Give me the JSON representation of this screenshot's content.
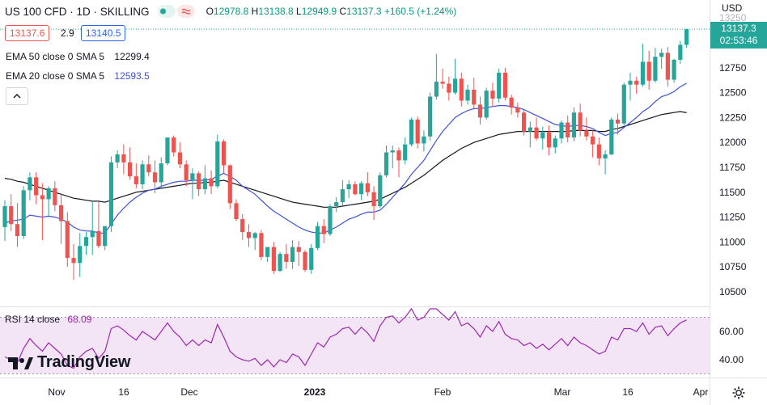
{
  "header": {
    "symbol": "US 100 CFD · 1D · SKILLING",
    "ohlc": {
      "o_label": "O",
      "o": "12978.8",
      "h_label": "H",
      "h": "13138.8",
      "l_label": "L",
      "l": "12949.9",
      "c_label": "C",
      "c": "13137.3",
      "change": "+160.5 (+1.24%)"
    },
    "sell": "13137.6",
    "spread": "2.9",
    "buy": "13140.5"
  },
  "indicators": {
    "ema50_label": "EMA 50 close 0 SMA 5",
    "ema50_value": "12299.4",
    "ema20_label": "EMA 20 close 0 SMA 5",
    "ema20_value": "12593.5",
    "rsi_label": "RSI 14 close",
    "rsi_value": "68.09"
  },
  "price_axis": {
    "unit": "USD",
    "last_price": "13137.3",
    "countdown": "02:53:46"
  },
  "brand": "TradingView",
  "colors": {
    "up": "#26a69a",
    "down": "#ef5350",
    "ema20": "#3f51d8",
    "ema50": "#131722",
    "rsi_line": "#9c27b0",
    "rsi_band": "#f3e5f5",
    "sell_border": "#ef5350",
    "buy_border": "#2962ff"
  },
  "chart_data": [
    {
      "type": "candlestick",
      "series_name": "US 100 CFD",
      "x_labels": [
        "Nov",
        "16",
        "Dec",
        "2023",
        "Feb",
        "Mar",
        "16",
        "Apr"
      ],
      "y_ticks": [
        10500,
        10750,
        11000,
        11250,
        11500,
        11750,
        12000,
        12250,
        12500,
        12750,
        13000,
        13250
      ],
      "ylim": [
        10400,
        13300
      ],
      "ohlc": [
        [
          11150,
          11420,
          11010,
          11360
        ],
        [
          11360,
          11480,
          11110,
          11180
        ],
        [
          11180,
          11390,
          10950,
          11060
        ],
        [
          11060,
          11560,
          11030,
          11520
        ],
        [
          11520,
          11700,
          11420,
          11650
        ],
        [
          11650,
          11700,
          11380,
          11470
        ],
        [
          11470,
          11590,
          11020,
          11430
        ],
        [
          11430,
          11560,
          11260,
          11540
        ],
        [
          11540,
          11610,
          11310,
          11370
        ],
        [
          11370,
          11490,
          10980,
          11210
        ],
        [
          11210,
          11300,
          10750,
          10840
        ],
        [
          10840,
          10980,
          10620,
          10790
        ],
        [
          10790,
          11090,
          10650,
          10960
        ],
        [
          10960,
          11100,
          10870,
          11050
        ],
        [
          11050,
          11410,
          10870,
          11110
        ],
        [
          11110,
          11400,
          10940,
          10960
        ],
        [
          10960,
          11140,
          10920,
          11160
        ],
        [
          11160,
          11860,
          11100,
          11800
        ],
        [
          11800,
          11920,
          11740,
          11880
        ],
        [
          11880,
          11980,
          11680,
          11800
        ],
        [
          11800,
          11950,
          11630,
          11660
        ],
        [
          11660,
          11790,
          11540,
          11580
        ],
        [
          11580,
          11820,
          11530,
          11780
        ],
        [
          11780,
          11870,
          11660,
          11700
        ],
        [
          11700,
          11820,
          11490,
          11600
        ],
        [
          11600,
          11850,
          11540,
          11790
        ],
        [
          11790,
          12050,
          11770,
          12050
        ],
        [
          12050,
          12070,
          11860,
          11900
        ],
        [
          11900,
          12000,
          11740,
          11780
        ],
        [
          11780,
          11820,
          11560,
          11620
        ],
        [
          11620,
          11740,
          11430,
          11690
        ],
        [
          11690,
          11710,
          11460,
          11530
        ],
        [
          11530,
          11770,
          11480,
          11640
        ],
        [
          11640,
          11720,
          11480,
          11560
        ],
        [
          11560,
          12080,
          11540,
          12010
        ],
        [
          12010,
          12030,
          11690,
          11770
        ],
        [
          11770,
          11780,
          11330,
          11390
        ],
        [
          11390,
          11430,
          11210,
          11230
        ],
        [
          11230,
          11280,
          11020,
          11100
        ],
        [
          11100,
          11180,
          10950,
          11040
        ],
        [
          11040,
          11100,
          10920,
          11090
        ],
        [
          11090,
          11120,
          10820,
          10850
        ],
        [
          10850,
          10940,
          10800,
          10950
        ],
        [
          10950,
          11000,
          10680,
          10710
        ],
        [
          10710,
          10900,
          10700,
          10880
        ],
        [
          10880,
          10980,
          10730,
          10800
        ],
        [
          10800,
          11020,
          10730,
          10950
        ],
        [
          10950,
          11010,
          10760,
          10900
        ],
        [
          10900,
          10920,
          10700,
          10720
        ],
        [
          10720,
          10980,
          10680,
          10940
        ],
        [
          10940,
          11200,
          10920,
          11160
        ],
        [
          11160,
          11230,
          10990,
          11080
        ],
        [
          11080,
          11380,
          11060,
          11360
        ],
        [
          11360,
          11450,
          11300,
          11400
        ],
        [
          11400,
          11620,
          11360,
          11530
        ],
        [
          11530,
          11620,
          11440,
          11580
        ],
        [
          11580,
          11610,
          11470,
          11480
        ],
        [
          11480,
          11610,
          11420,
          11590
        ],
        [
          11590,
          11700,
          11460,
          11500
        ],
        [
          11500,
          11560,
          11220,
          11360
        ],
        [
          11360,
          11700,
          11340,
          11670
        ],
        [
          11670,
          11970,
          11650,
          11900
        ],
        [
          11900,
          11970,
          11740,
          11920
        ],
        [
          11920,
          11950,
          11650,
          11820
        ],
        [
          11820,
          12050,
          11780,
          11980
        ],
        [
          11980,
          12250,
          11960,
          12230
        ],
        [
          12230,
          12260,
          11940,
          11990
        ],
        [
          11990,
          12120,
          11910,
          12060
        ],
        [
          12060,
          12500,
          12020,
          12460
        ],
        [
          12460,
          12890,
          12430,
          12610
        ],
        [
          12610,
          12740,
          12540,
          12590
        ],
        [
          12590,
          12660,
          12420,
          12500
        ],
        [
          12500,
          12840,
          12480,
          12640
        ],
        [
          12640,
          12700,
          12360,
          12420
        ],
        [
          12420,
          12580,
          12380,
          12530
        ],
        [
          12530,
          12650,
          12330,
          12380
        ],
        [
          12380,
          12460,
          12180,
          12250
        ],
        [
          12250,
          12550,
          12230,
          12520
        ],
        [
          12520,
          12600,
          12360,
          12440
        ],
        [
          12440,
          12740,
          12400,
          12700
        ],
        [
          12700,
          12750,
          12420,
          12450
        ],
        [
          12450,
          12480,
          12280,
          12350
        ],
        [
          12350,
          12400,
          12250,
          12300
        ],
        [
          12300,
          12330,
          12070,
          12110
        ],
        [
          12110,
          12210,
          11950,
          12150
        ],
        [
          12150,
          12250,
          12020,
          12040
        ],
        [
          12040,
          12160,
          11930,
          12100
        ],
        [
          12100,
          12170,
          11870,
          11950
        ],
        [
          11950,
          12070,
          11890,
          12040
        ],
        [
          12040,
          12220,
          11990,
          12200
        ],
        [
          12200,
          12270,
          12000,
          12050
        ],
        [
          12050,
          12350,
          12010,
          12300
        ],
        [
          12300,
          12390,
          12060,
          12120
        ],
        [
          12120,
          12250,
          12020,
          12060
        ],
        [
          12060,
          12120,
          11850,
          11980
        ],
        [
          11980,
          12050,
          11770,
          11840
        ],
        [
          11840,
          11920,
          11680,
          11880
        ],
        [
          11880,
          12250,
          11870,
          12230
        ],
        [
          12230,
          12290,
          12080,
          12190
        ],
        [
          12190,
          12600,
          12170,
          12580
        ],
        [
          12580,
          12700,
          12420,
          12620
        ],
        [
          12620,
          12660,
          12490,
          12580
        ],
        [
          12580,
          12990,
          12560,
          12810
        ],
        [
          12810,
          12920,
          12530,
          12620
        ],
        [
          12620,
          12950,
          12600,
          12860
        ],
        [
          12860,
          12940,
          12740,
          12900
        ],
        [
          12900,
          12960,
          12560,
          12630
        ],
        [
          12630,
          12840,
          12600,
          12830
        ],
        [
          12830,
          13020,
          12790,
          12980
        ],
        [
          12980,
          13140,
          12950,
          13137
        ]
      ],
      "ema20_values": [
        11190,
        11210,
        11220,
        11230,
        11270,
        11260,
        11250,
        11260,
        11250,
        11230,
        11200,
        11150,
        11120,
        11110,
        11110,
        11090,
        11090,
        11180,
        11270,
        11340,
        11400,
        11450,
        11490,
        11520,
        11530,
        11560,
        11580,
        11600,
        11610,
        11610,
        11620,
        11620,
        11620,
        11630,
        11660,
        11690,
        11660,
        11620,
        11560,
        11520,
        11480,
        11420,
        11360,
        11310,
        11270,
        11230,
        11190,
        11150,
        11120,
        11100,
        11090,
        11090,
        11120,
        11150,
        11190,
        11230,
        11250,
        11280,
        11300,
        11300,
        11320,
        11380,
        11450,
        11520,
        11590,
        11680,
        11750,
        11820,
        11920,
        12020,
        12110,
        12180,
        12250,
        12290,
        12320,
        12340,
        12340,
        12350,
        12360,
        12370,
        12370,
        12360,
        12350,
        12330,
        12300,
        12270,
        12240,
        12210,
        12180,
        12170,
        12160,
        12170,
        12170,
        12160,
        12140,
        12100,
        12070,
        12090,
        12100,
        12150,
        12200,
        12250,
        12310,
        12350,
        12410,
        12460,
        12480,
        12510,
        12560,
        12594
      ],
      "ema50_values": [
        11640,
        11630,
        11610,
        11600,
        11580,
        11560,
        11540,
        11520,
        11500,
        11480,
        11460,
        11440,
        11430,
        11420,
        11410,
        11410,
        11400,
        11420,
        11440,
        11460,
        11480,
        11500,
        11510,
        11520,
        11530,
        11540,
        11550,
        11560,
        11570,
        11580,
        11590,
        11590,
        11600,
        11600,
        11610,
        11620,
        11600,
        11580,
        11560,
        11540,
        11520,
        11500,
        11480,
        11460,
        11440,
        11420,
        11400,
        11390,
        11380,
        11370,
        11360,
        11350,
        11350,
        11350,
        11360,
        11370,
        11380,
        11390,
        11400,
        11410,
        11430,
        11460,
        11490,
        11520,
        11550,
        11590,
        11630,
        11670,
        11720,
        11770,
        11820,
        11860,
        11900,
        11940,
        11970,
        12000,
        12020,
        12040,
        12060,
        12080,
        12090,
        12100,
        12110,
        12110,
        12110,
        12110,
        12110,
        12110,
        12110,
        12110,
        12110,
        12120,
        12120,
        12120,
        12120,
        12110,
        12110,
        12130,
        12140,
        12160,
        12180,
        12200,
        12220,
        12240,
        12260,
        12280,
        12290,
        12300,
        12310,
        12299
      ]
    },
    {
      "type": "line",
      "series_name": "RSI 14 close",
      "y_ticks": [
        40,
        60
      ],
      "ylim": [
        20,
        80
      ],
      "band": [
        30,
        70
      ],
      "values": [
        42,
        40,
        38,
        48,
        55,
        50,
        46,
        52,
        48,
        44,
        36,
        34,
        42,
        46,
        48,
        41,
        46,
        62,
        64,
        61,
        57,
        54,
        60,
        57,
        54,
        60,
        66,
        60,
        56,
        50,
        54,
        50,
        54,
        52,
        65,
        56,
        46,
        42,
        40,
        39,
        41,
        36,
        40,
        35,
        40,
        38,
        44,
        42,
        36,
        44,
        52,
        49,
        56,
        58,
        62,
        63,
        58,
        63,
        59,
        53,
        64,
        70,
        71,
        66,
        70,
        76,
        68,
        70,
        76,
        76,
        72,
        68,
        74,
        64,
        66,
        62,
        56,
        64,
        60,
        67,
        58,
        55,
        54,
        50,
        52,
        48,
        51,
        47,
        51,
        55,
        50,
        56,
        52,
        50,
        47,
        44,
        46,
        56,
        54,
        62,
        62,
        60,
        66,
        58,
        63,
        64,
        57,
        62,
        66,
        68.09
      ]
    }
  ]
}
